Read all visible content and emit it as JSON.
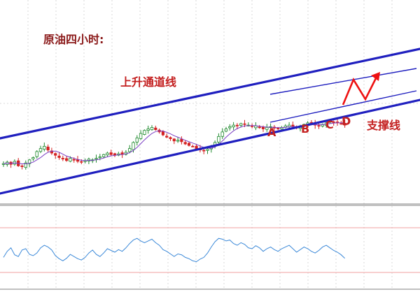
{
  "title": "原油四小时:",
  "labels": {
    "channel": "上升通道线",
    "support": "支撑线",
    "points": [
      "A",
      "B",
      "C",
      "D"
    ]
  },
  "colors": {
    "channel": "#1f1fbf",
    "bull_candle": "#1f8a2e",
    "bear_candle": "#d42020",
    "moving_average": "#7b3fc4",
    "projection_arrow": "#ee1111",
    "oscillator": "#3a88d8",
    "text": "#c42020"
  },
  "chart_data": {
    "type": "candlestick",
    "title": "原油四小时:",
    "xlabel": "",
    "ylabel": "",
    "grid": true,
    "price_range": [
      0,
      100
    ],
    "price": [
      22,
      24,
      21,
      25,
      19,
      18,
      23,
      27,
      30,
      38,
      42,
      45,
      40,
      36,
      33,
      30,
      28,
      26,
      29,
      27,
      25,
      24,
      26,
      28,
      27,
      29,
      31,
      34,
      36,
      34,
      33,
      35,
      34,
      37,
      42,
      50,
      56,
      62,
      66,
      68,
      70,
      67,
      64,
      60,
      57,
      55,
      52,
      53,
      51,
      48,
      46,
      45,
      42,
      40,
      39,
      41,
      44,
      50,
      58,
      64,
      68,
      71,
      73,
      72,
      75,
      74,
      73,
      71,
      72,
      70,
      68,
      70,
      71,
      69,
      68,
      70,
      72,
      73,
      71,
      70,
      72,
      74,
      76,
      75,
      73,
      72,
      74,
      76,
      78,
      77,
      76,
      75,
      73
    ],
    "moving_average": [
      22,
      22.5,
      22.5,
      23,
      22.5,
      21.8,
      21.8,
      22.6,
      24,
      27,
      30,
      34,
      37,
      38.5,
      38.5,
      37,
      34.5,
      32,
      30.5,
      29,
      27.5,
      26.5,
      26,
      26.3,
      26.5,
      27,
      28,
      29.5,
      31,
      32.3,
      33,
      33.8,
      34.2,
      35,
      36.5,
      39.5,
      43.5,
      48.5,
      53.5,
      58,
      62,
      64.5,
      65.5,
      65,
      63.5,
      61.5,
      59,
      57,
      55,
      53,
      51,
      49.3,
      47.5,
      45.5,
      43.5,
      42.5,
      42.5,
      44,
      47.5,
      52,
      57,
      61.5,
      65.5,
      68.5,
      70.5,
      72,
      72.5,
      72.5,
      72.3,
      71.5,
      70.8,
      70.5,
      70.3,
      70,
      69.6,
      69.7,
      70.2,
      70.8,
      71,
      71,
      71.3,
      72,
      73,
      73.6,
      73.8,
      73.6,
      73.7,
      74.2,
      75,
      75.8,
      76.2,
      76.2,
      75.6
    ],
    "channel_lines": [
      "上升通道线",
      "支撑线"
    ],
    "key_points": [
      {
        "label": "A",
        "index": 70
      },
      {
        "label": "B",
        "index": 79
      },
      {
        "label": "C",
        "index": 86
      },
      {
        "label": "D",
        "index": 89
      }
    ],
    "projection": [
      73,
      66,
      82,
      70,
      84
    ],
    "oscillator": {
      "range": [
        0,
        100
      ],
      "values": [
        38,
        52,
        60,
        44,
        40,
        55,
        58,
        45,
        42,
        48,
        60,
        66,
        62,
        55,
        42,
        35,
        30,
        36,
        45,
        40,
        35,
        32,
        38,
        48,
        55,
        45,
        40,
        48,
        58,
        54,
        50,
        56,
        52,
        60,
        70,
        78,
        82,
        76,
        72,
        76,
        80,
        72,
        66,
        56,
        52,
        46,
        40,
        46,
        44,
        38,
        35,
        30,
        28,
        34,
        38,
        48,
        62,
        74,
        82,
        80,
        76,
        78,
        70,
        66,
        72,
        68,
        60,
        58,
        65,
        60,
        52,
        58,
        62,
        56,
        52,
        58,
        62,
        66,
        58,
        50,
        56,
        62,
        58,
        52,
        48,
        54,
        62,
        66,
        60,
        54,
        50,
        44,
        36
      ]
    }
  }
}
